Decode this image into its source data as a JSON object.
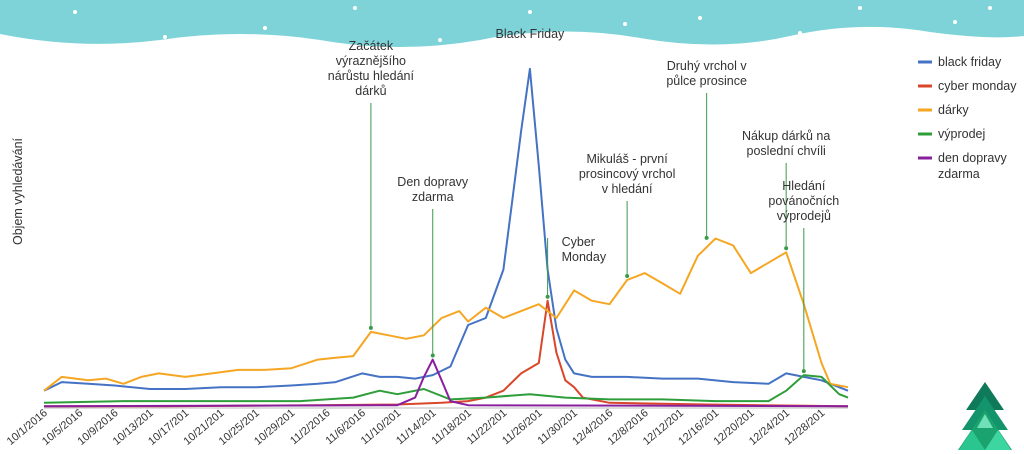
{
  "colors": {
    "banner": "#7dd3d8",
    "annotation_line": "#3a9a4a"
  },
  "chart_data": {
    "type": "line",
    "ylabel": "Objem vyhledávání",
    "xlabel": "",
    "title": "",
    "x_tick_labels": [
      "10/1/2016",
      "10/5/2016",
      "10/9/2016",
      "10/13/201",
      "10/17/201",
      "10/21/201",
      "10/25/201",
      "10/29/201",
      "11/2/2016",
      "11/6/2016",
      "11/10/201",
      "11/14/201",
      "11/18/201",
      "11/22/201",
      "11/26/201",
      "11/30/201",
      "12/4/2016",
      "12/8/2016",
      "12/12/201",
      "12/16/201",
      "12/20/201",
      "12/24/201",
      "12/28/201"
    ],
    "x_start": "2016-10-01",
    "x_end": "2016-12-31",
    "ylim": [
      0,
      100
    ],
    "grid": false,
    "legend_position": "right",
    "series": [
      {
        "name": "black friday",
        "color": "#4472c4",
        "values": [
          {
            "x": "2016-10-01",
            "y": 5
          },
          {
            "x": "2016-10-03",
            "y": 7.5
          },
          {
            "x": "2016-10-06",
            "y": 7
          },
          {
            "x": "2016-10-09",
            "y": 6.5
          },
          {
            "x": "2016-10-13",
            "y": 5.5
          },
          {
            "x": "2016-10-17",
            "y": 5.5
          },
          {
            "x": "2016-10-21",
            "y": 6
          },
          {
            "x": "2016-10-25",
            "y": 6
          },
          {
            "x": "2016-10-29",
            "y": 6.5
          },
          {
            "x": "2016-11-01",
            "y": 7
          },
          {
            "x": "2016-11-03",
            "y": 7.5
          },
          {
            "x": "2016-11-06",
            "y": 10
          },
          {
            "x": "2016-11-08",
            "y": 9
          },
          {
            "x": "2016-11-10",
            "y": 9
          },
          {
            "x": "2016-11-12",
            "y": 8.5
          },
          {
            "x": "2016-11-14",
            "y": 9.5
          },
          {
            "x": "2016-11-16",
            "y": 12
          },
          {
            "x": "2016-11-18",
            "y": 24
          },
          {
            "x": "2016-11-20",
            "y": 26
          },
          {
            "x": "2016-11-22",
            "y": 40
          },
          {
            "x": "2016-11-23",
            "y": 60
          },
          {
            "x": "2016-11-24",
            "y": 80
          },
          {
            "x": "2016-11-25",
            "y": 98
          },
          {
            "x": "2016-11-26",
            "y": 70
          },
          {
            "x": "2016-11-27",
            "y": 40
          },
          {
            "x": "2016-11-28",
            "y": 23
          },
          {
            "x": "2016-11-29",
            "y": 14
          },
          {
            "x": "2016-11-30",
            "y": 10
          },
          {
            "x": "2016-12-02",
            "y": 9
          },
          {
            "x": "2016-12-06",
            "y": 9
          },
          {
            "x": "2016-12-10",
            "y": 8.5
          },
          {
            "x": "2016-12-14",
            "y": 8.5
          },
          {
            "x": "2016-12-18",
            "y": 7.5
          },
          {
            "x": "2016-12-22",
            "y": 7
          },
          {
            "x": "2016-12-24",
            "y": 10
          },
          {
            "x": "2016-12-26",
            "y": 9
          },
          {
            "x": "2016-12-28",
            "y": 8
          },
          {
            "x": "2016-12-31",
            "y": 5
          }
        ]
      },
      {
        "name": "cyber monday",
        "color": "#d9472b",
        "values": [
          {
            "x": "2016-10-01",
            "y": 0.5
          },
          {
            "x": "2016-10-15",
            "y": 0.5
          },
          {
            "x": "2016-11-01",
            "y": 0.8
          },
          {
            "x": "2016-11-10",
            "y": 1
          },
          {
            "x": "2016-11-15",
            "y": 1.5
          },
          {
            "x": "2016-11-18",
            "y": 2
          },
          {
            "x": "2016-11-20",
            "y": 3
          },
          {
            "x": "2016-11-22",
            "y": 5
          },
          {
            "x": "2016-11-24",
            "y": 10
          },
          {
            "x": "2016-11-26",
            "y": 13
          },
          {
            "x": "2016-11-27",
            "y": 31
          },
          {
            "x": "2016-11-28",
            "y": 16
          },
          {
            "x": "2016-11-29",
            "y": 8
          },
          {
            "x": "2016-11-30",
            "y": 6
          },
          {
            "x": "2016-12-01",
            "y": 3
          },
          {
            "x": "2016-12-04",
            "y": 1.5
          },
          {
            "x": "2016-12-15",
            "y": 1
          },
          {
            "x": "2016-12-31",
            "y": 0.5
          }
        ]
      },
      {
        "name": "dárky",
        "color": "#f5a623",
        "values": [
          {
            "x": "2016-10-01",
            "y": 5
          },
          {
            "x": "2016-10-03",
            "y": 9
          },
          {
            "x": "2016-10-06",
            "y": 8
          },
          {
            "x": "2016-10-08",
            "y": 8.5
          },
          {
            "x": "2016-10-10",
            "y": 7
          },
          {
            "x": "2016-10-12",
            "y": 9
          },
          {
            "x": "2016-10-14",
            "y": 10
          },
          {
            "x": "2016-10-17",
            "y": 9
          },
          {
            "x": "2016-10-20",
            "y": 10
          },
          {
            "x": "2016-10-23",
            "y": 11
          },
          {
            "x": "2016-10-26",
            "y": 11
          },
          {
            "x": "2016-10-29",
            "y": 11.5
          },
          {
            "x": "2016-11-01",
            "y": 14
          },
          {
            "x": "2016-11-03",
            "y": 14.5
          },
          {
            "x": "2016-11-05",
            "y": 15
          },
          {
            "x": "2016-11-07",
            "y": 22
          },
          {
            "x": "2016-11-09",
            "y": 21
          },
          {
            "x": "2016-11-11",
            "y": 20
          },
          {
            "x": "2016-11-13",
            "y": 21
          },
          {
            "x": "2016-11-15",
            "y": 26
          },
          {
            "x": "2016-11-17",
            "y": 28
          },
          {
            "x": "2016-11-18",
            "y": 25
          },
          {
            "x": "2016-11-20",
            "y": 29
          },
          {
            "x": "2016-11-22",
            "y": 26
          },
          {
            "x": "2016-11-24",
            "y": 28
          },
          {
            "x": "2016-11-26",
            "y": 30
          },
          {
            "x": "2016-11-28",
            "y": 26
          },
          {
            "x": "2016-11-30",
            "y": 34
          },
          {
            "x": "2016-12-02",
            "y": 31
          },
          {
            "x": "2016-12-04",
            "y": 30
          },
          {
            "x": "2016-12-06",
            "y": 37
          },
          {
            "x": "2016-12-08",
            "y": 39
          },
          {
            "x": "2016-12-10",
            "y": 36
          },
          {
            "x": "2016-12-12",
            "y": 33
          },
          {
            "x": "2016-12-14",
            "y": 44
          },
          {
            "x": "2016-12-16",
            "y": 49
          },
          {
            "x": "2016-12-18",
            "y": 47
          },
          {
            "x": "2016-12-20",
            "y": 39
          },
          {
            "x": "2016-12-22",
            "y": 42
          },
          {
            "x": "2016-12-24",
            "y": 45
          },
          {
            "x": "2016-12-26",
            "y": 30
          },
          {
            "x": "2016-12-28",
            "y": 13
          },
          {
            "x": "2016-12-29",
            "y": 7
          },
          {
            "x": "2016-12-31",
            "y": 6
          }
        ]
      },
      {
        "name": "výprodej",
        "color": "#2e9e3a",
        "values": [
          {
            "x": "2016-10-01",
            "y": 1.5
          },
          {
            "x": "2016-10-10",
            "y": 2
          },
          {
            "x": "2016-10-20",
            "y": 2
          },
          {
            "x": "2016-10-30",
            "y": 2
          },
          {
            "x": "2016-11-05",
            "y": 3
          },
          {
            "x": "2016-11-08",
            "y": 5
          },
          {
            "x": "2016-11-10",
            "y": 4
          },
          {
            "x": "2016-11-13",
            "y": 5.5
          },
          {
            "x": "2016-11-16",
            "y": 2.5
          },
          {
            "x": "2016-11-20",
            "y": 3
          },
          {
            "x": "2016-11-25",
            "y": 4
          },
          {
            "x": "2016-11-29",
            "y": 3
          },
          {
            "x": "2016-12-04",
            "y": 2.5
          },
          {
            "x": "2016-12-10",
            "y": 2.5
          },
          {
            "x": "2016-12-16",
            "y": 2
          },
          {
            "x": "2016-12-22",
            "y": 2
          },
          {
            "x": "2016-12-24",
            "y": 5
          },
          {
            "x": "2016-12-26",
            "y": 9.5
          },
          {
            "x": "2016-12-28",
            "y": 9
          },
          {
            "x": "2016-12-30",
            "y": 4
          },
          {
            "x": "2016-12-31",
            "y": 3
          }
        ]
      },
      {
        "name": "den dopravy zdarma",
        "color": "#8a1f9e",
        "values": [
          {
            "x": "2016-10-01",
            "y": 0.5
          },
          {
            "x": "2016-11-10",
            "y": 0.8
          },
          {
            "x": "2016-11-12",
            "y": 3
          },
          {
            "x": "2016-11-13",
            "y": 9
          },
          {
            "x": "2016-11-14",
            "y": 14
          },
          {
            "x": "2016-11-15",
            "y": 8
          },
          {
            "x": "2016-11-16",
            "y": 2
          },
          {
            "x": "2016-11-18",
            "y": 0.8
          },
          {
            "x": "2016-12-31",
            "y": 0.5
          }
        ]
      }
    ],
    "annotations": [
      {
        "lines": [
          "Začátek",
          "výraznějšího",
          "nárůstu hledání",
          "dárků"
        ],
        "x": "2016-11-07",
        "y": 22
      },
      {
        "lines": [
          "Den dopravy",
          "zdarma"
        ],
        "x": "2016-11-14",
        "y": 14
      },
      {
        "lines": [
          "Black Friday"
        ],
        "x": "2016-11-25",
        "y": 98
      },
      {
        "lines": [
          "Cyber",
          "Monday"
        ],
        "x": "2016-11-27",
        "y": 31
      },
      {
        "lines": [
          "Mikuláš - první",
          "prosincový vrchol",
          "v hledání"
        ],
        "x": "2016-12-06",
        "y": 37
      },
      {
        "lines": [
          "Druhý vrchol v",
          "půlce prosince"
        ],
        "x": "2016-12-15",
        "y": 48
      },
      {
        "lines": [
          "Nákup dárků na",
          "poslední chvíli"
        ],
        "x": "2016-12-24",
        "y": 45
      },
      {
        "lines": [
          "Hledání",
          "povánočních",
          "výprodejů"
        ],
        "x": "2016-12-26",
        "y": 9.5
      }
    ]
  }
}
